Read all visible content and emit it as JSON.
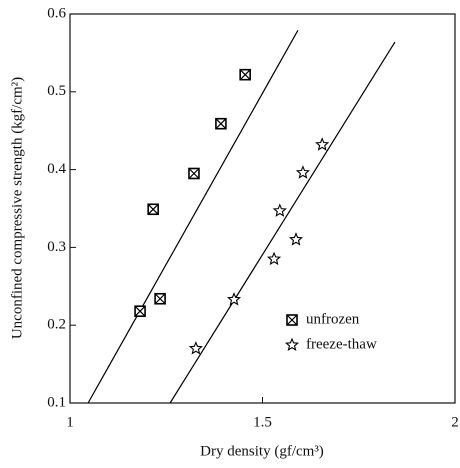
{
  "chart_data": {
    "type": "scatter",
    "xlabel": "Dry density (gf/cm³)",
    "ylabel": "Unconfined compressive strength (kgf/cm²)",
    "xlim": [
      1,
      2
    ],
    "xticks": [
      1,
      1.5,
      2
    ],
    "ylim": [
      0.1,
      0.6
    ],
    "yticks": [
      0.1,
      0.2,
      0.3,
      0.4,
      0.5,
      0.6
    ],
    "legend": "lower right",
    "series": [
      {
        "name": "unfrozen",
        "marker": "boxed-x",
        "color": "#000000",
        "x": [
          1.182,
          1.234,
          1.216,
          1.322,
          1.392,
          1.455
        ],
        "values": [
          0.218,
          0.234,
          0.349,
          0.395,
          0.459,
          0.522
        ],
        "fit": {
          "x": [
            1.047,
            1.592
          ],
          "y": [
            0.1,
            0.579
          ]
        }
      },
      {
        "name": "freeze-thaw",
        "marker": "star",
        "color": "#000000",
        "x": [
          1.327,
          1.426,
          1.53,
          1.545,
          1.587,
          1.605,
          1.655
        ],
        "values": [
          0.17,
          0.233,
          0.285,
          0.347,
          0.31,
          0.396,
          0.432
        ],
        "fit": {
          "x": [
            1.26,
            1.844
          ],
          "y": [
            0.1,
            0.564
          ]
        }
      }
    ]
  }
}
